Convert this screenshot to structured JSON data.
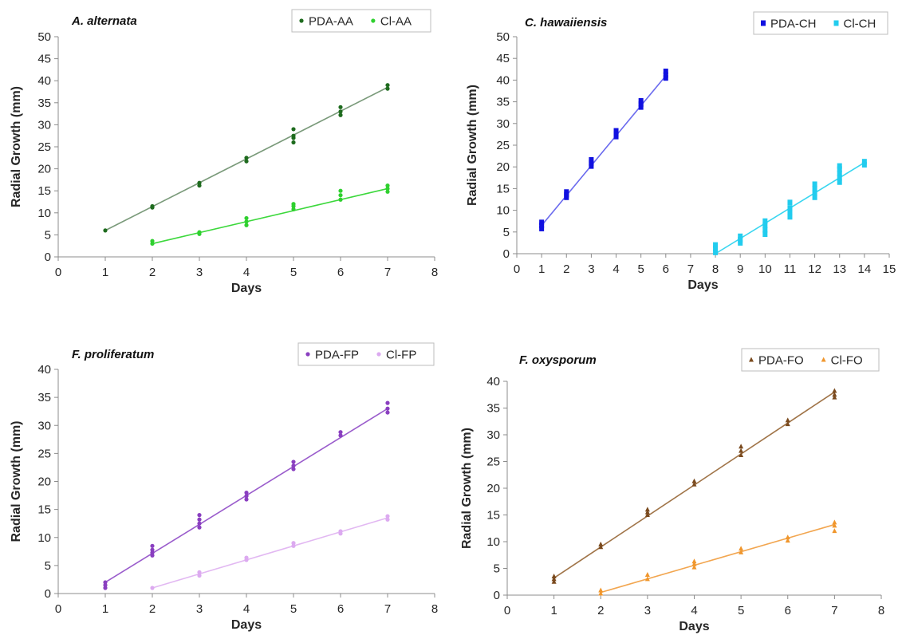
{
  "chart_data": [
    {
      "type": "scatter",
      "title": "A. alternata",
      "xlabel": "Days",
      "ylabel": "Radial Growth (mm)",
      "xlim": [
        0,
        8
      ],
      "ylim": [
        0,
        50
      ],
      "xticks": [
        0,
        1,
        2,
        3,
        4,
        5,
        6,
        7,
        8
      ],
      "yticks": [
        0,
        5,
        10,
        15,
        20,
        25,
        30,
        35,
        40,
        45,
        50
      ],
      "legend": "top-right",
      "grid": false,
      "series": [
        {
          "name": "PDA-AA",
          "color": "#1e6b1e",
          "line_color": "#7a9a7a",
          "marker": "circle",
          "points": [
            [
              1,
              6
            ],
            [
              2,
              11.2
            ],
            [
              2,
              11.5
            ],
            [
              3,
              16.2
            ],
            [
              3,
              16.8
            ],
            [
              4,
              21.7
            ],
            [
              4,
              22.5
            ],
            [
              5,
              26
            ],
            [
              5,
              27
            ],
            [
              5,
              27.5
            ],
            [
              5,
              29
            ],
            [
              6,
              32.2
            ],
            [
              6,
              33
            ],
            [
              6,
              34
            ],
            [
              7,
              38.2
            ],
            [
              7,
              39
            ]
          ],
          "fit": [
            [
              1,
              6
            ],
            [
              7,
              38.5
            ]
          ]
        },
        {
          "name": "Cl-AA",
          "color": "#2fd02f",
          "line_color": "#3cd83c",
          "marker": "circle",
          "points": [
            [
              2,
              3
            ],
            [
              2,
              3.6
            ],
            [
              3,
              5.2
            ],
            [
              3,
              5.6
            ],
            [
              4,
              7.2
            ],
            [
              4,
              8
            ],
            [
              4,
              8.8
            ],
            [
              5,
              10.8
            ],
            [
              5,
              11.5
            ],
            [
              5,
              12
            ],
            [
              6,
              13
            ],
            [
              6,
              14
            ],
            [
              6,
              15
            ],
            [
              7,
              14.8
            ],
            [
              7,
              15.5
            ],
            [
              7,
              16.2
            ]
          ],
          "fit": [
            [
              2,
              3
            ],
            [
              7,
              15.5
            ]
          ]
        }
      ]
    },
    {
      "type": "scatter",
      "title": "C. hawaiiensis",
      "xlabel": "Days",
      "ylabel": "Radial Growth (mm)",
      "xlim": [
        0,
        15
      ],
      "ylim": [
        0,
        50
      ],
      "xticks": [
        0,
        1,
        2,
        3,
        4,
        5,
        6,
        7,
        8,
        9,
        10,
        11,
        12,
        13,
        14,
        15
      ],
      "yticks": [
        0,
        5,
        10,
        15,
        20,
        25,
        30,
        35,
        40,
        45,
        50
      ],
      "legend": "top-right",
      "grid": false,
      "series": [
        {
          "name": "PDA-CH",
          "color": "#1010e0",
          "line_color": "#6a6aee",
          "marker": "square",
          "points": [
            [
              1,
              5.8
            ],
            [
              1,
              6.5
            ],
            [
              1,
              7.2
            ],
            [
              2,
              13
            ],
            [
              2,
              13.6
            ],
            [
              2,
              14.2
            ],
            [
              3,
              20.2
            ],
            [
              3,
              20.9
            ],
            [
              3,
              21.6
            ],
            [
              4,
              27
            ],
            [
              4,
              27.6
            ],
            [
              4,
              28.3
            ],
            [
              5,
              33.8
            ],
            [
              5,
              34.5
            ],
            [
              5,
              35.2
            ],
            [
              6,
              40.5
            ],
            [
              6,
              41.2
            ],
            [
              6,
              42
            ]
          ],
          "fit": [
            [
              1,
              6.5
            ],
            [
              6,
              41
            ]
          ]
        },
        {
          "name": "Cl-CH",
          "color": "#22ccee",
          "line_color": "#38d6f0",
          "marker": "square",
          "points": [
            [
              8,
              0.3
            ],
            [
              8,
              1.2
            ],
            [
              8,
              2
            ],
            [
              9,
              2.5
            ],
            [
              9,
              3.2
            ],
            [
              9,
              4
            ],
            [
              10,
              4.5
            ],
            [
              10,
              5.5
            ],
            [
              10,
              6.5
            ],
            [
              10,
              7.5
            ],
            [
              11,
              8.5
            ],
            [
              11,
              9.5
            ],
            [
              11,
              10.5
            ],
            [
              11,
              11.8
            ],
            [
              12,
              13
            ],
            [
              12,
              14
            ],
            [
              12,
              15
            ],
            [
              12,
              16
            ],
            [
              13,
              16.5
            ],
            [
              13,
              17.5
            ],
            [
              13,
              18.5
            ],
            [
              13,
              19.5
            ],
            [
              13,
              20.2
            ],
            [
              14,
              20.5
            ],
            [
              14,
              21.2
            ]
          ],
          "fit": [
            [
              8,
              0
            ],
            [
              14,
              21
            ]
          ]
        }
      ]
    },
    {
      "type": "scatter",
      "title": "F. proliferatum",
      "xlabel": "Days",
      "ylabel": "Radial Growth (mm)",
      "xlim": [
        0,
        8
      ],
      "ylim": [
        0,
        40
      ],
      "xticks": [
        0,
        1,
        2,
        3,
        4,
        5,
        6,
        7,
        8
      ],
      "yticks": [
        0,
        5,
        10,
        15,
        20,
        25,
        30,
        35,
        40
      ],
      "legend": "top-right",
      "grid": false,
      "series": [
        {
          "name": "PDA-FP",
          "color": "#8a3fc0",
          "line_color": "#9a5ccc",
          "marker": "circle",
          "points": [
            [
              1,
              1
            ],
            [
              1,
              1.5
            ],
            [
              1,
              2
            ],
            [
              2,
              6.8
            ],
            [
              2,
              7.3
            ],
            [
              2,
              7.8
            ],
            [
              2,
              8.5
            ],
            [
              3,
              11.8
            ],
            [
              3,
              12.5
            ],
            [
              3,
              13.2
            ],
            [
              3,
              14
            ],
            [
              4,
              16.8
            ],
            [
              4,
              17.4
            ],
            [
              4,
              18
            ],
            [
              5,
              22.2
            ],
            [
              5,
              22.8
            ],
            [
              5,
              23.5
            ],
            [
              6,
              28.2
            ],
            [
              6,
              28.8
            ],
            [
              7,
              32.3
            ],
            [
              7,
              33
            ],
            [
              7,
              34
            ]
          ],
          "fit": [
            [
              1,
              2
            ],
            [
              7,
              33
            ]
          ]
        },
        {
          "name": "Cl-FP",
          "color": "#dcaaf0",
          "line_color": "#e2b8f2",
          "marker": "circle",
          "points": [
            [
              2,
              1
            ],
            [
              3,
              3.2
            ],
            [
              3,
              3.8
            ],
            [
              4,
              6
            ],
            [
              4,
              6.4
            ],
            [
              5,
              8.5
            ],
            [
              5,
              9
            ],
            [
              6,
              10.7
            ],
            [
              6,
              11.1
            ],
            [
              7,
              13.2
            ],
            [
              7,
              13.8
            ]
          ],
          "fit": [
            [
              2,
              1
            ],
            [
              7,
              13.5
            ]
          ]
        }
      ]
    },
    {
      "type": "scatter",
      "title": "F. oxysporum",
      "xlabel": "Days",
      "ylabel": "Radial Growth (mm)",
      "xlim": [
        0,
        8
      ],
      "ylim": [
        0,
        40
      ],
      "xticks": [
        0,
        1,
        2,
        3,
        4,
        5,
        6,
        7,
        8
      ],
      "yticks": [
        0,
        5,
        10,
        15,
        20,
        25,
        30,
        35,
        40
      ],
      "legend": "top-right",
      "grid": false,
      "series": [
        {
          "name": "PDA-FO",
          "color": "#7a4a1e",
          "line_color": "#a07448",
          "marker": "triangle",
          "points": [
            [
              1,
              2.5
            ],
            [
              1,
              3
            ],
            [
              1,
              3.5
            ],
            [
              2,
              9
            ],
            [
              2,
              9.5
            ],
            [
              3,
              15
            ],
            [
              3,
              15.5
            ],
            [
              3,
              16
            ],
            [
              4,
              20.7
            ],
            [
              4,
              21.3
            ],
            [
              5,
              26.2
            ],
            [
              5,
              27
            ],
            [
              5,
              27.8
            ],
            [
              6,
              32
            ],
            [
              6,
              32.7
            ],
            [
              7,
              37
            ],
            [
              7,
              37.5
            ],
            [
              7,
              38.2
            ]
          ],
          "fit": [
            [
              1,
              3.2
            ],
            [
              7,
              38
            ]
          ]
        },
        {
          "name": "Cl-FO",
          "color": "#f0962c",
          "line_color": "#f2a650",
          "marker": "triangle",
          "points": [
            [
              2,
              0.3
            ],
            [
              2,
              0.9
            ],
            [
              3,
              3
            ],
            [
              3,
              3.8
            ],
            [
              4,
              5.2
            ],
            [
              4,
              5.8
            ],
            [
              4,
              6.3
            ],
            [
              5,
              8
            ],
            [
              5,
              8.7
            ],
            [
              6,
              10.2
            ],
            [
              6,
              10.8
            ],
            [
              7,
              12
            ],
            [
              7,
              13
            ],
            [
              7,
              13.6
            ]
          ],
          "fit": [
            [
              2,
              0.5
            ],
            [
              7,
              13.2
            ]
          ]
        }
      ]
    }
  ]
}
